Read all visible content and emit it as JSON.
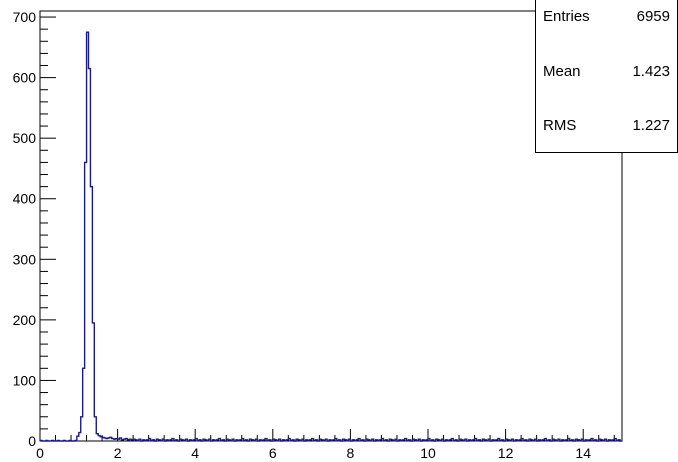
{
  "chart_data": {
    "type": "histogram",
    "title": "",
    "xlabel": "",
    "ylabel": "",
    "xlim": [
      0,
      15
    ],
    "ylim": [
      0,
      710
    ],
    "xticks": [
      "0",
      "2",
      "4",
      "6",
      "8",
      "10",
      "12",
      "14"
    ],
    "yticks": [
      "0",
      "100",
      "200",
      "300",
      "400",
      "500",
      "600",
      "700"
    ],
    "line_color": "#1a1a8c",
    "bin_width": 0.05,
    "bins_start": 0.95,
    "values": [
      8,
      14,
      40,
      120,
      460,
      675,
      615,
      420,
      195,
      40,
      12,
      9,
      7,
      6,
      5,
      4,
      5,
      6,
      4,
      3,
      4,
      3,
      5,
      2,
      3,
      4,
      2,
      3,
      2,
      3
    ],
    "tail": {
      "x_start": 2.45,
      "x_end": 15.0,
      "typical": 2
    },
    "stats": {
      "entries_label": "Entries",
      "entries": "6959",
      "mean_label": "Mean",
      "mean": "1.423",
      "rms_label": "RMS",
      "rms": "1.227"
    },
    "grid": false
  }
}
